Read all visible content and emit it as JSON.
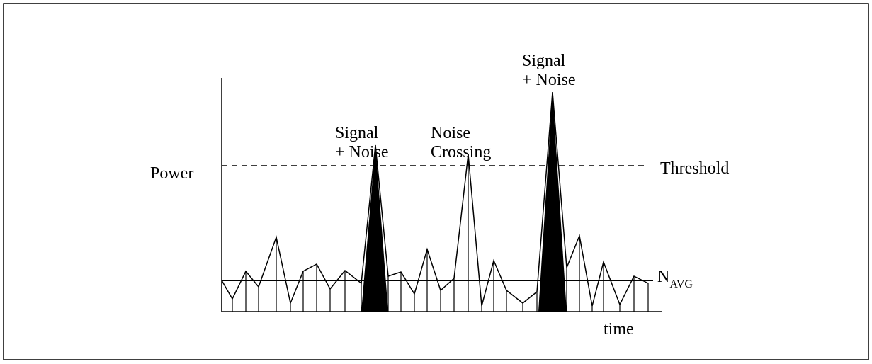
{
  "y_axis_label": "Power",
  "threshold_label": "Threshold",
  "x_axis_label": "time",
  "average_label": {
    "main": "N",
    "sub": "AVG"
  },
  "annotations": [
    {
      "lines": [
        "Signal",
        "+ Noise"
      ]
    },
    {
      "lines": [
        "Noise",
        "Crossing"
      ]
    },
    {
      "lines": [
        "Signal",
        "+ Noise"
      ]
    }
  ]
}
